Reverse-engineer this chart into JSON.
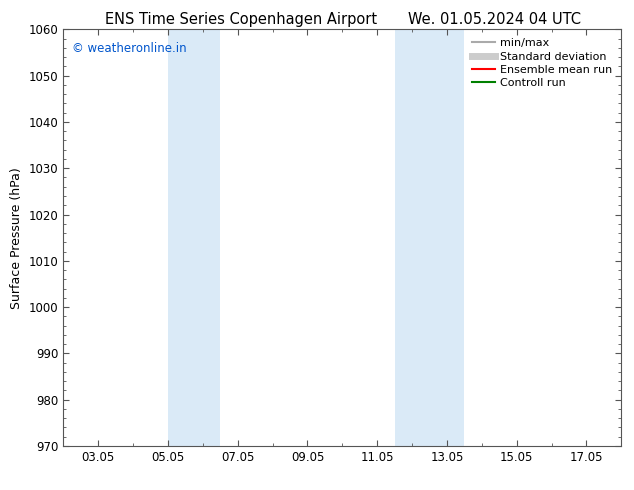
{
  "title_left": "ENS Time Series Copenhagen Airport",
  "title_right": "We. 01.05.2024 04 UTC",
  "ylabel": "Surface Pressure (hPa)",
  "ylim": [
    970,
    1060
  ],
  "yticks": [
    970,
    980,
    990,
    1000,
    1010,
    1020,
    1030,
    1040,
    1050,
    1060
  ],
  "xlim": [
    1,
    17
  ],
  "xtick_positions": [
    2,
    4,
    6,
    8,
    10,
    12,
    14,
    16
  ],
  "xtick_labels": [
    "03.05",
    "05.05",
    "07.05",
    "09.05",
    "11.05",
    "13.05",
    "15.05",
    "17.05"
  ],
  "shade_regions": [
    {
      "x_start": 4.0,
      "x_end": 5.5
    },
    {
      "x_start": 10.5,
      "x_end": 12.5
    }
  ],
  "shade_color": "#daeaf7",
  "copyright_text": "© weatheronline.in",
  "copyright_color": "#0055cc",
  "legend_items": [
    {
      "label": "min/max",
      "color": "#aaaaaa",
      "lw": 1.5
    },
    {
      "label": "Standard deviation",
      "color": "#cccccc",
      "lw": 5
    },
    {
      "label": "Ensemble mean run",
      "color": "#ff0000",
      "lw": 1.5
    },
    {
      "label": "Controll run",
      "color": "#008000",
      "lw": 1.5
    }
  ],
  "bg_color": "#ffffff",
  "title_fontsize": 10.5,
  "ylabel_fontsize": 9,
  "tick_fontsize": 8.5,
  "legend_fontsize": 8,
  "copyright_fontsize": 8.5
}
